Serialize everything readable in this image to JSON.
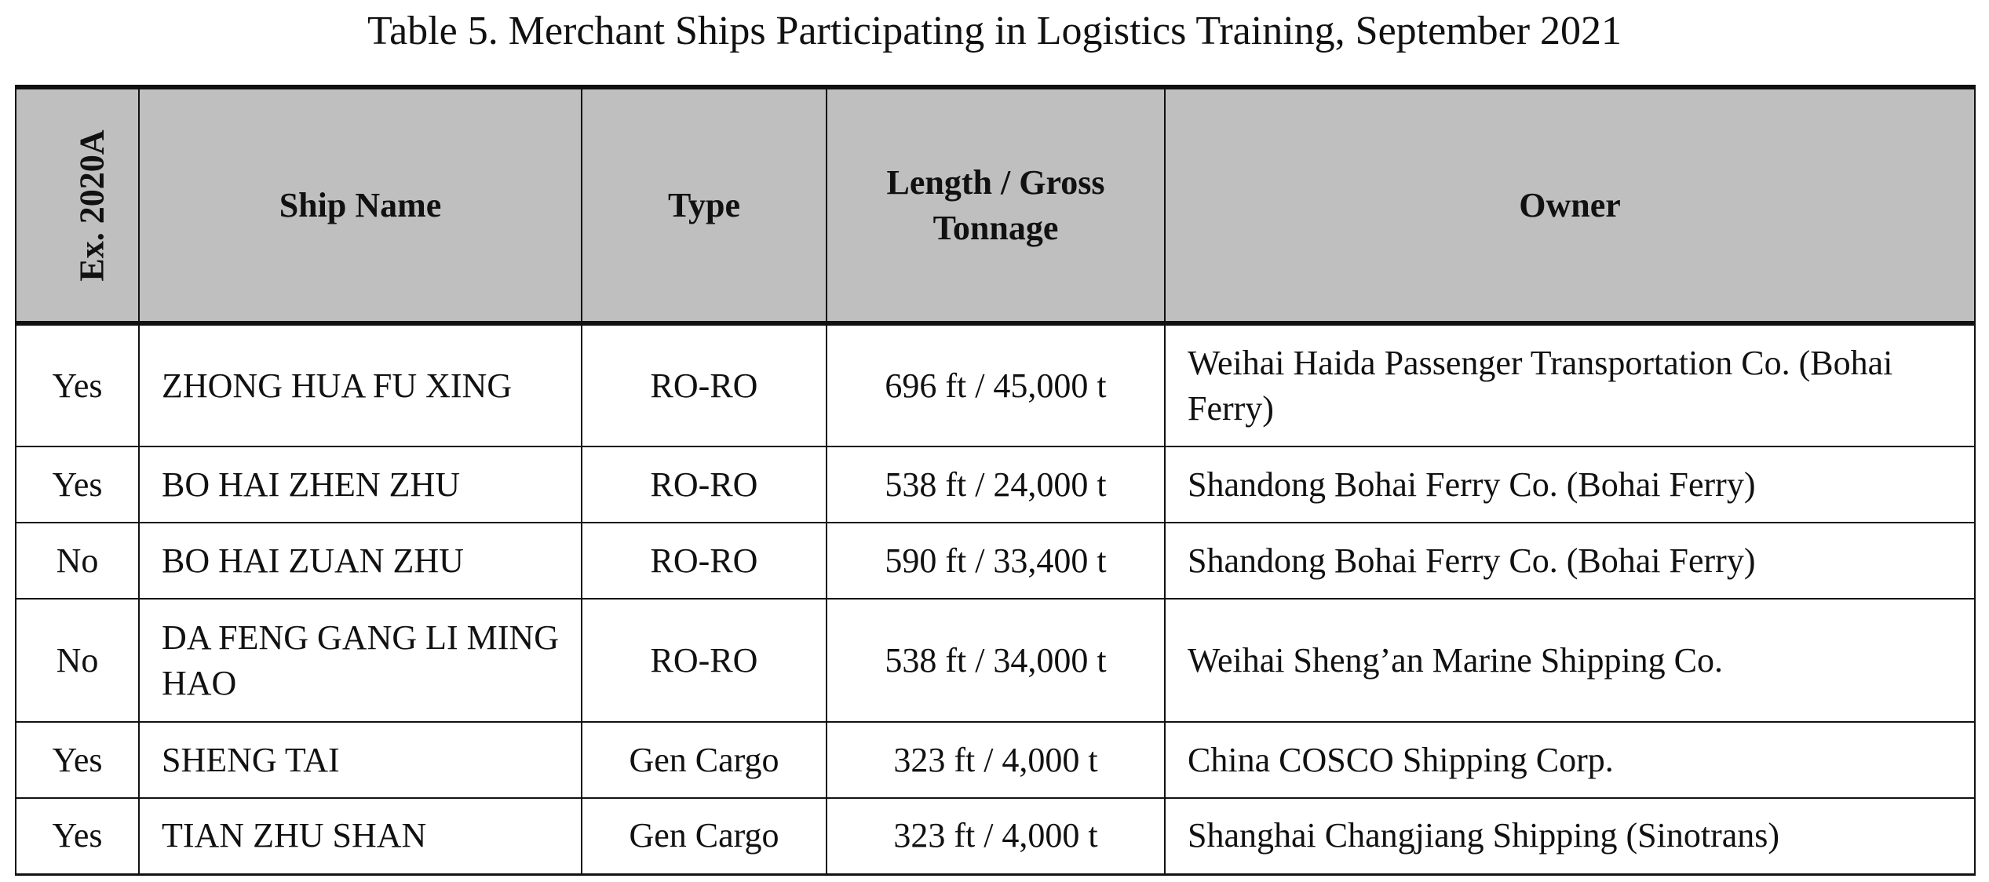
{
  "title": "Table 5. Merchant Ships Participating in Logistics Training, September 2021",
  "columns": [
    "Ex. 2020A",
    "Ship Name",
    "Type",
    "Length / Gross Tonnage",
    "Owner"
  ],
  "header_color": "#bfbfbf",
  "rows": [
    {
      "ex": "Yes",
      "name": "ZHONG HUA FU XING",
      "type": "RO-RO",
      "size": "696 ft / 45,000 t",
      "owner": "Weihai Haida Passenger Transportation Co. (Bohai Ferry)"
    },
    {
      "ex": "Yes",
      "name": "BO HAI ZHEN ZHU",
      "type": "RO-RO",
      "size": "538 ft / 24,000 t",
      "owner": "Shandong Bohai Ferry Co. (Bohai Ferry)"
    },
    {
      "ex": "No",
      "name": "BO HAI ZUAN ZHU",
      "type": "RO-RO",
      "size": "590 ft / 33,400 t",
      "owner": "Shandong Bohai Ferry Co. (Bohai Ferry)"
    },
    {
      "ex": "No",
      "name": "DA FENG GANG LI MING HAO",
      "type": "RO-RO",
      "size": "538 ft / 34,000 t",
      "owner": "Weihai Sheng’an Marine Shipping Co."
    },
    {
      "ex": "Yes",
      "name": "SHENG TAI",
      "type": "Gen Cargo",
      "size": "323 ft / 4,000 t",
      "owner": "China COSCO Shipping Corp."
    },
    {
      "ex": "Yes",
      "name": "TIAN ZHU SHAN",
      "type": "Gen Cargo",
      "size": "323 ft / 4,000 t",
      "owner": "Shanghai Changjiang Shipping (Sinotrans)"
    }
  ]
}
